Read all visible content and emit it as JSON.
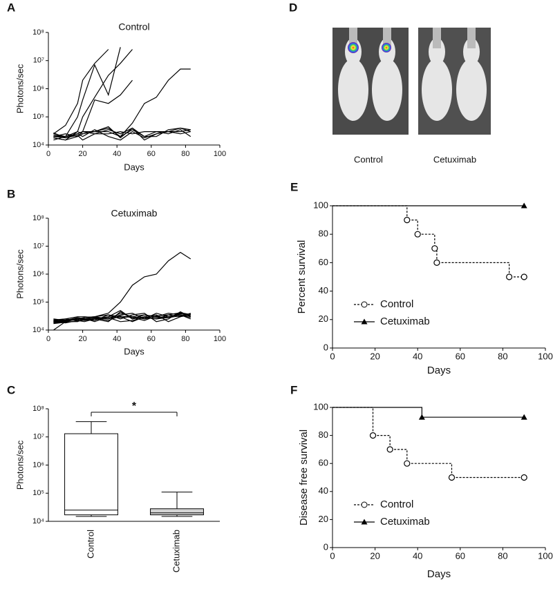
{
  "chart_data": [
    {
      "type": "line",
      "panel": "A",
      "title": "Control",
      "x_label": "Days",
      "y_label": "Photons/sec",
      "log_y": true,
      "color": "#000000",
      "xlim": [
        0,
        100
      ],
      "xticks": [
        0,
        20,
        40,
        60,
        80,
        100
      ],
      "ylim": [
        10000,
        100000000
      ],
      "yticks": [
        {
          "value": 10000,
          "label": "10⁴"
        },
        {
          "value": 100000,
          "label": "10⁵"
        },
        {
          "value": 1000000,
          "label": "10⁶"
        },
        {
          "value": 10000000,
          "label": "10⁷"
        },
        {
          "value": 100000000,
          "label": "10⁸"
        }
      ],
      "x": [
        3,
        10,
        17,
        20,
        27,
        35,
        42,
        49,
        56,
        63,
        70,
        77,
        83
      ],
      "series": [
        {
          "values": [
            25000,
            50000,
            300000,
            2000000,
            8000000,
            25000000,
            null,
            null,
            null,
            null,
            null,
            null,
            null
          ]
        },
        {
          "values": [
            20000,
            20000,
            100000,
            400000,
            7000000,
            600000,
            30000000,
            null,
            null,
            null,
            null,
            null,
            null
          ]
        },
        {
          "values": [
            18000,
            15000,
            30000,
            100000,
            500000,
            3000000,
            8000000,
            25000000,
            null,
            null,
            null,
            null,
            null
          ]
        },
        {
          "values": [
            22000,
            20000,
            25000,
            30000,
            400000,
            300000,
            600000,
            2000000,
            null,
            null,
            null,
            null,
            null
          ]
        },
        {
          "values": [
            20000,
            18000,
            25000,
            30000,
            30000,
            40000,
            20000,
            60000,
            300000,
            500000,
            2000000,
            5000000,
            5000000
          ]
        },
        {
          "values": [
            25000,
            20000,
            30000,
            25000,
            30000,
            45000,
            18000,
            40000,
            15000,
            25000,
            30000,
            40000,
            30000
          ]
        },
        {
          "values": [
            18000,
            15000,
            20000,
            25000,
            30000,
            30000,
            20000,
            35000,
            20000,
            30000,
            25000,
            35000,
            20000
          ]
        },
        {
          "values": [
            20000,
            25000,
            20000,
            30000,
            25000,
            25000,
            30000,
            25000,
            30000,
            30000,
            30000,
            30000,
            35000
          ]
        },
        {
          "values": [
            15000,
            20000,
            25000,
            20000,
            35000,
            20000,
            15000,
            30000,
            18000,
            25000,
            30000,
            25000,
            30000
          ]
        },
        {
          "values": [
            27000,
            18000,
            22000,
            15000,
            25000,
            35000,
            25000,
            40000,
            20000,
            20000,
            35000,
            40000,
            35000
          ]
        }
      ]
    },
    {
      "type": "line",
      "panel": "B",
      "title": "Cetuximab",
      "x_label": "Days",
      "y_label": "Photons/sec",
      "log_y": true,
      "color": "#000000",
      "xlim": [
        0,
        100
      ],
      "xticks": [
        0,
        20,
        40,
        60,
        80,
        100
      ],
      "ylim": [
        10000,
        100000000
      ],
      "yticks": [
        {
          "value": 10000,
          "label": "10⁴"
        },
        {
          "value": 100000,
          "label": "10⁵"
        },
        {
          "value": 1000000,
          "label": "10⁶"
        },
        {
          "value": 10000000,
          "label": "10⁷"
        },
        {
          "value": 100000000,
          "label": "10⁸"
        }
      ],
      "x": [
        3,
        10,
        17,
        21,
        27,
        35,
        42,
        49,
        56,
        63,
        70,
        77,
        83
      ],
      "series": [
        {
          "values": [
            20000,
            22000,
            25000,
            28000,
            30000,
            40000,
            100000,
            400000,
            800000,
            1000000,
            3000000,
            6000000,
            3500000
          ]
        },
        {
          "values": [
            18000,
            20000,
            25000,
            22000,
            25000,
            30000,
            50000,
            25000,
            35000,
            30000,
            28000,
            40000,
            30000
          ]
        },
        {
          "values": [
            22000,
            25000,
            22000,
            28000,
            30000,
            25000,
            40000,
            30000,
            25000,
            40000,
            30000,
            35000,
            28000
          ]
        },
        {
          "values": [
            25000,
            22000,
            28000,
            25000,
            22000,
            35000,
            30000,
            20000,
            30000,
            25000,
            35000,
            30000,
            40000
          ]
        },
        {
          "values": [
            10000,
            20000,
            20000,
            25000,
            30000,
            35000,
            25000,
            35000,
            40000,
            20000,
            25000,
            45000,
            30000
          ]
        },
        {
          "values": [
            20000,
            18000,
            22000,
            20000,
            25000,
            20000,
            45000,
            25000,
            30000,
            35000,
            20000,
            30000,
            35000
          ]
        },
        {
          "values": [
            23000,
            25000,
            30000,
            30000,
            28000,
            25000,
            35000,
            40000,
            25000,
            30000,
            40000,
            35000,
            25000
          ]
        },
        {
          "values": [
            19000,
            21000,
            24000,
            26000,
            20000,
            30000,
            28000,
            30000,
            35000,
            28000,
            30000,
            38000,
            33000
          ]
        },
        {
          "values": [
            21000,
            23000,
            26000,
            24000,
            27000,
            22000,
            32000,
            28000,
            22000,
            32000,
            35000,
            42000,
            36000
          ]
        },
        {
          "values": [
            17000,
            19000,
            21000,
            23000,
            25000,
            28000,
            20000,
            22000,
            28000,
            25000,
            28000,
            32000,
            38000
          ]
        }
      ]
    },
    {
      "type": "box",
      "panel": "C",
      "y_label": "Photons/sec",
      "log_y": true,
      "ylim": [
        10000,
        100000000
      ],
      "yticks": [
        {
          "value": 10000,
          "label": "10⁴"
        },
        {
          "value": 100000,
          "label": "10⁵"
        },
        {
          "value": 1000000,
          "label": "10⁶"
        },
        {
          "value": 10000000,
          "label": "10⁷"
        },
        {
          "value": 100000000,
          "label": "10⁸"
        }
      ],
      "categories": [
        "Control",
        "Cetuximab"
      ],
      "colors": [
        "#ffffff",
        "#d4d4d4"
      ],
      "min": [
        15000,
        15000
      ],
      "q1": [
        17000,
        17000
      ],
      "median": [
        25000,
        20000
      ],
      "q3": [
        13000000,
        28000
      ],
      "max": [
        35000000,
        110000
      ],
      "annotation": "*"
    },
    {
      "type": "image",
      "panel": "D",
      "labels": [
        "Control",
        "Cetuximab"
      ]
    },
    {
      "type": "survival",
      "panel": "E",
      "x_label": "Days",
      "y_label": "Percent survival",
      "legend": "lower left",
      "xlim": [
        0,
        100
      ],
      "xticks": [
        0,
        20,
        40,
        60,
        80,
        100
      ],
      "ylim": [
        0,
        100
      ],
      "yticks": [
        0,
        20,
        40,
        60,
        80,
        100
      ],
      "series": [
        {
          "name": "Control",
          "color": "#000000",
          "dashed": true,
          "marker": "circle",
          "x": [
            0,
            35,
            40,
            48,
            49,
            83,
            90
          ],
          "values": [
            100,
            90,
            80,
            70,
            60,
            50,
            50
          ]
        },
        {
          "name": "Cetuximab",
          "color": "#000000",
          "dashed": false,
          "marker": "triangle",
          "x": [
            0,
            90
          ],
          "values": [
            100,
            100
          ]
        }
      ]
    },
    {
      "type": "survival",
      "panel": "F",
      "x_label": "Days",
      "y_label": "Disease free survival",
      "legend": "lower left",
      "xlim": [
        0,
        100
      ],
      "xticks": [
        0,
        20,
        40,
        60,
        80,
        100
      ],
      "ylim": [
        0,
        100
      ],
      "yticks": [
        0,
        20,
        40,
        60,
        80,
        100
      ],
      "series": [
        {
          "name": "Control",
          "color": "#000000",
          "dashed": true,
          "marker": "circle",
          "x": [
            0,
            19,
            27,
            35,
            56,
            90
          ],
          "values": [
            100,
            80,
            70,
            60,
            50,
            50
          ]
        },
        {
          "name": "Cetuximab",
          "color": "#000000",
          "dashed": false,
          "marker": "triangle",
          "x": [
            0,
            42,
            90
          ],
          "values": [
            100,
            93,
            93
          ]
        }
      ]
    }
  ]
}
